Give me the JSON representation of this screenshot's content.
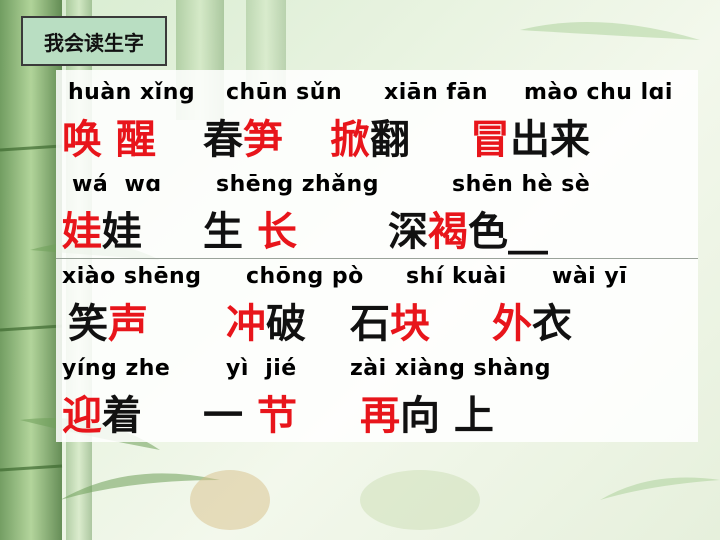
{
  "title": "我会读生字",
  "rows": [
    {
      "pinyin": [
        "huàn xǐng",
        "chūn sǔn",
        "xiān fān",
        "mào chu lɑi"
      ],
      "words": [
        [
          {
            "t": "唤",
            "c": "red"
          },
          {
            "t": " ",
            "c": "blk"
          },
          {
            "t": "醒",
            "c": "red"
          }
        ],
        [
          {
            "t": "春",
            "c": "blk"
          },
          {
            "t": "笋",
            "c": "red"
          }
        ],
        [
          {
            "t": "掀",
            "c": "red"
          },
          {
            "t": "翻",
            "c": "blk"
          }
        ],
        [
          {
            "t": "冒",
            "c": "red"
          },
          {
            "t": "出来",
            "c": "blk"
          }
        ]
      ]
    },
    {
      "pinyin": [
        "wá  wɑ",
        "shēng zhǎng",
        "shēn hè sè"
      ],
      "words": [
        [
          {
            "t": "娃",
            "c": "red"
          },
          {
            "t": "娃",
            "c": "blk"
          }
        ],
        [
          {
            "t": "生 ",
            "c": "blk"
          },
          {
            "t": "长",
            "c": "red"
          }
        ],
        [
          {
            "t": "深",
            "c": "blk"
          },
          {
            "t": "褐",
            "c": "red"
          },
          {
            "t": "色__",
            "c": "blk"
          }
        ]
      ]
    },
    {
      "pinyin": [
        "xiào shēng",
        "chōng pò",
        "shí kuài",
        "wài yī"
      ],
      "words": [
        [
          {
            "t": "笑",
            "c": "blk"
          },
          {
            "t": "声",
            "c": "red"
          }
        ],
        [
          {
            "t": "冲",
            "c": "red"
          },
          {
            "t": "破",
            "c": "blk"
          }
        ],
        [
          {
            "t": "石",
            "c": "blk"
          },
          {
            "t": "块",
            "c": "red"
          }
        ],
        [
          {
            "t": "外",
            "c": "red"
          },
          {
            "t": "衣",
            "c": "blk"
          }
        ]
      ]
    },
    {
      "pinyin": [
        "yíng zhe",
        "yì  jié",
        "zài xiàng shàng"
      ],
      "words": [
        [
          {
            "t": "迎",
            "c": "red"
          },
          {
            "t": "着",
            "c": "blk"
          }
        ],
        [
          {
            "t": "一 ",
            "c": "blk"
          },
          {
            "t": "节",
            "c": "red"
          }
        ],
        [
          {
            "t": "再",
            "c": "red"
          },
          {
            "t": "向 上",
            "c": "blk"
          }
        ]
      ]
    }
  ]
}
